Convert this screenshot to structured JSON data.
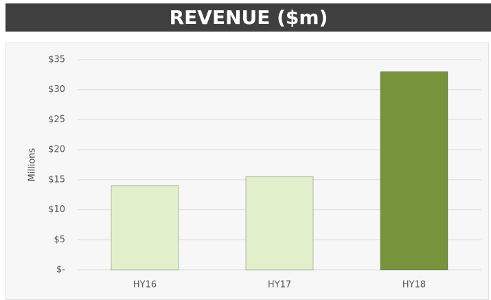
{
  "chart_data": {
    "type": "bar",
    "title": "REVENUE ($m)",
    "y_label": "Millions",
    "categories": [
      "HY16",
      "HY17",
      "HY18"
    ],
    "values": [
      14,
      15.5,
      33
    ],
    "colors": [
      "#e2efcb",
      "#e2efcb",
      "#77933c"
    ],
    "ylim": [
      0,
      35
    ],
    "yticks": [
      {
        "value": 0,
        "label": "$-"
      },
      {
        "value": 5,
        "label": "$5"
      },
      {
        "value": 10,
        "label": "$10"
      },
      {
        "value": 15,
        "label": "$15"
      },
      {
        "value": 20,
        "label": "$20"
      },
      {
        "value": 25,
        "label": "$25"
      },
      {
        "value": 30,
        "label": "$30"
      },
      {
        "value": 35,
        "label": "$35"
      }
    ],
    "grid": true
  }
}
